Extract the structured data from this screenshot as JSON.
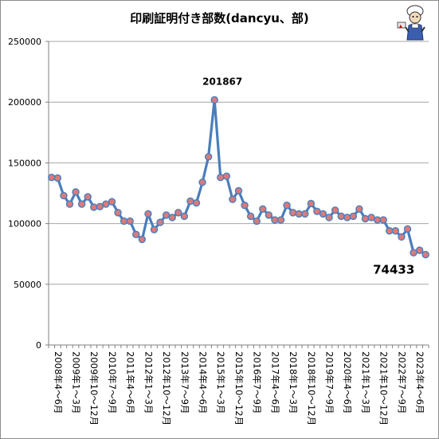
{
  "chart_data": {
    "type": "line",
    "title": "印刷証明付き部数(dancyu、部)",
    "xlabel": "",
    "ylabel": "",
    "ylim": [
      0,
      250000
    ],
    "y_ticks": [
      "0",
      "50000",
      "100000",
      "150000",
      "200000",
      "250000"
    ],
    "y_tick_values": [
      0,
      50000,
      100000,
      150000,
      200000,
      250000
    ],
    "grid": "horizontal",
    "legend": "none",
    "colors": {
      "line": "#4a7ebb",
      "marker": "#d97b7b",
      "grid": "#a6a6a6",
      "axis": "#808080"
    },
    "x_tick_labels": [
      "2008年4～6月",
      "2009年1～3月",
      "2009年10～12月",
      "2010年7～9月",
      "2011年4～6月",
      "2012年1～3月",
      "2012年10～12月",
      "2013年7～9月",
      "2014年4～6月",
      "2015年1～3月",
      "2015年10～12月",
      "2016年7～9月",
      "2017年4～6月",
      "2018年1～3月",
      "2018年10～12月",
      "2019年7～9月",
      "2020年4～6月",
      "2021年1～3月",
      "2021年10～12月",
      "2022年7～9月",
      "2023年4～6月"
    ],
    "x_tick_every": 3,
    "values": [
      138000,
      137500,
      123000,
      116000,
      126000,
      116000,
      122000,
      113500,
      114000,
      116000,
      118000,
      109000,
      102000,
      102000,
      91000,
      87000,
      108000,
      95000,
      101000,
      107000,
      105000,
      109000,
      106000,
      118500,
      117000,
      134000,
      155000,
      201867,
      138000,
      139000,
      120000,
      127000,
      115000,
      106000,
      102000,
      112000,
      107000,
      103000,
      103000,
      115000,
      109000,
      108000,
      108000,
      116500,
      110000,
      108000,
      105000,
      111000,
      106000,
      105000,
      106000,
      112000,
      104000,
      105000,
      103000,
      103000,
      94000,
      94000,
      89000,
      95500,
      76000,
      78000,
      74433
    ],
    "data_labels": [
      {
        "index": 27,
        "text": "201867"
      },
      {
        "index": 62,
        "text": "74433"
      }
    ]
  }
}
